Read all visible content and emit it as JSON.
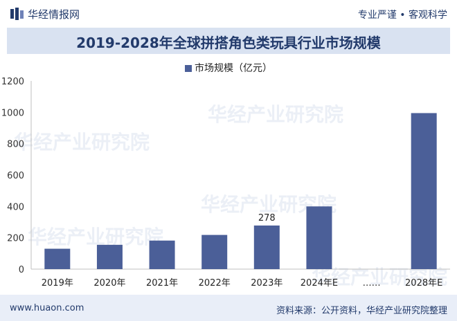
{
  "header": {
    "brand": "华经情报网",
    "slogan": "专业严谨 • 客观科学"
  },
  "chart_data": {
    "type": "bar",
    "title": "2019-2028年全球拼搭角色类玩具行业市场规模",
    "categories": [
      "2019年",
      "2020年",
      "2021年",
      "2022年",
      "2023年",
      "2024年E",
      "……",
      "2028年E"
    ],
    "series": [
      {
        "name": "市场规模（亿元）",
        "values": [
          130,
          155,
          182,
          218,
          278,
          400,
          null,
          995
        ]
      }
    ],
    "data_labels": [
      {
        "category": "2023年",
        "text": "278"
      }
    ],
    "yticks": [
      "0",
      "200",
      "400",
      "600",
      "800",
      "1000",
      "1200"
    ],
    "ylim": [
      0,
      1200
    ],
    "grid": false,
    "legend": "top",
    "color": "#4b5f98"
  },
  "watermark": "华经产业研究院",
  "footer": {
    "website": "www.huaon.com",
    "source": "资料来源：公开资料，华经产业研究院整理"
  }
}
